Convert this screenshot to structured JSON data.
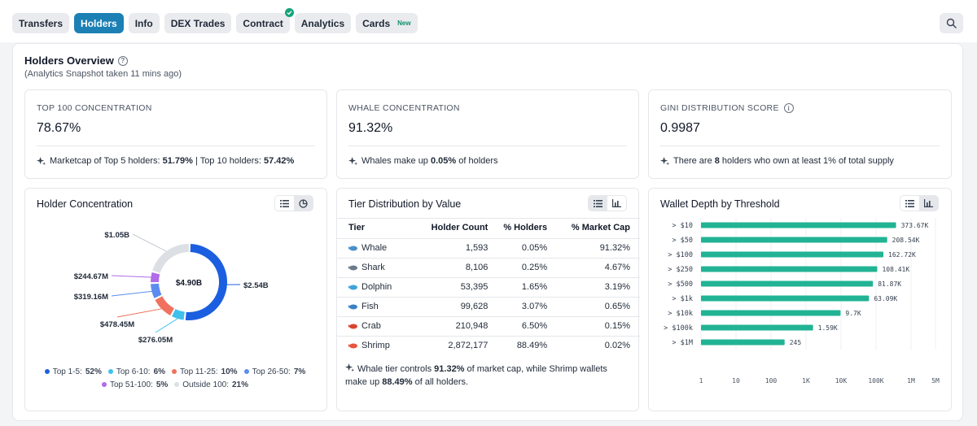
{
  "tabs": [
    {
      "label": "Transfers",
      "active": false
    },
    {
      "label": "Holders",
      "active": true
    },
    {
      "label": "Info",
      "active": false
    },
    {
      "label": "DEX Trades",
      "active": false
    },
    {
      "label": "Contract",
      "active": false,
      "verified": true
    },
    {
      "label": "Analytics",
      "active": false
    },
    {
      "label": "Cards",
      "active": false,
      "badge": "New"
    }
  ],
  "overview": {
    "title": "Holders Overview",
    "subtitle": "(Analytics Snapshot taken 11 mins ago)"
  },
  "stats": [
    {
      "label": "TOP 100 CONCENTRATION",
      "value": "78.67%",
      "note_pre": "Marketcap of Top 5 holders: ",
      "note_b1": "51.79%",
      "note_mid": " | Top 10 holders: ",
      "note_b2": "57.42%",
      "note_post": ""
    },
    {
      "label": "WHALE CONCENTRATION",
      "value": "91.32%",
      "note_pre": "Whales make up ",
      "note_b1": "0.05%",
      "note_mid": " of holders",
      "note_b2": "",
      "note_post": ""
    },
    {
      "label": "GINI DISTRIBUTION SCORE",
      "value": "0.9987",
      "note_pre": "There are ",
      "note_b1": "8",
      "note_mid": " holders who own at least 1% of total supply",
      "note_b2": "",
      "note_post": ""
    }
  ],
  "concentration": {
    "title": "Holder Concentration",
    "center": "$4.90B",
    "slice_labels": [
      "$2.54B",
      "$276.05M",
      "$478.45M",
      "$319.16M",
      "$244.67M",
      "$1.05B"
    ],
    "legend": [
      {
        "label": "Top 1-5:",
        "value": "52%",
        "color": "#1b5fe0"
      },
      {
        "label": "Top 6-10:",
        "value": "6%",
        "color": "#3fc1ec"
      },
      {
        "label": "Top 11-25:",
        "value": "10%",
        "color": "#f0725e"
      },
      {
        "label": "Top 26-50:",
        "value": "7%",
        "color": "#5b8cf0"
      },
      {
        "label": "Top 51-100:",
        "value": "5%",
        "color": "#b06be8"
      },
      {
        "label": "Outside 100:",
        "value": "21%",
        "color": "#dcdfe4"
      }
    ]
  },
  "tiers": {
    "title": "Tier Distribution by Value",
    "headers": [
      "Tier",
      "Holder Count",
      "% Holders",
      "% Market Cap"
    ],
    "rows": [
      {
        "icon": "whale-icon",
        "tier": "Whale",
        "count": "1,593",
        "holders": "0.05%",
        "cap": "91.32%"
      },
      {
        "icon": "shark-icon",
        "tier": "Shark",
        "count": "8,106",
        "holders": "0.25%",
        "cap": "4.67%"
      },
      {
        "icon": "dolphin-icon",
        "tier": "Dolphin",
        "count": "53,395",
        "holders": "1.65%",
        "cap": "3.19%"
      },
      {
        "icon": "fish-icon",
        "tier": "Fish",
        "count": "99,628",
        "holders": "3.07%",
        "cap": "0.65%"
      },
      {
        "icon": "crab-icon",
        "tier": "Crab",
        "count": "210,948",
        "holders": "6.50%",
        "cap": "0.15%"
      },
      {
        "icon": "shrimp-icon",
        "tier": "Shrimp",
        "count": "2,872,177",
        "holders": "88.49%",
        "cap": "0.02%"
      }
    ],
    "note": {
      "a": "Whale tier controls ",
      "b": "91.32%",
      "c": " of market cap, while Shrimp wallets make up ",
      "d": "88.49%",
      "e": " of all holders."
    }
  },
  "wallet": {
    "title": "Wallet Depth by Threshold"
  },
  "chart_data": [
    {
      "type": "pie",
      "title": "Holder Concentration",
      "center_label": "$4.90B",
      "categories": [
        "Top 1-5",
        "Top 6-10",
        "Top 11-25",
        "Top 26-50",
        "Top 51-100",
        "Outside 100"
      ],
      "values": [
        52,
        6,
        10,
        7,
        5,
        21
      ],
      "value_labels": [
        "$2.54B",
        "$276.05M",
        "$478.45M",
        "$319.16M",
        "$244.67M",
        "$1.05B"
      ],
      "colors": [
        "#1b5fe0",
        "#3fc1ec",
        "#f0725e",
        "#5b8cf0",
        "#b06be8",
        "#dcdfe4"
      ],
      "legend": "bottom"
    },
    {
      "type": "bar",
      "orientation": "horizontal",
      "title": "Wallet Depth by Threshold",
      "categories": [
        "> $10",
        "> $50",
        "> $100",
        "> $250",
        "> $500",
        "> $1k",
        "> $10k",
        "> $100k",
        "> $1M"
      ],
      "values": [
        373670,
        208540,
        162720,
        108410,
        81870,
        63090,
        9700,
        1590,
        245
      ],
      "data_labels": [
        "373.67K",
        "208.54K",
        "162.72K",
        "108.41K",
        "81.87K",
        "63.09K",
        "9.7K",
        "1.59K",
        "245"
      ],
      "x_scale": "log",
      "xlim": [
        1,
        5000000
      ],
      "x_ticks": [
        1,
        10,
        100,
        1000,
        10000,
        100000,
        1000000,
        5000000
      ],
      "x_tick_labels": [
        "1",
        "10",
        "100",
        "1K",
        "10K",
        "100K",
        "1M",
        "5M"
      ],
      "color": "#21b394",
      "grid": true
    }
  ]
}
